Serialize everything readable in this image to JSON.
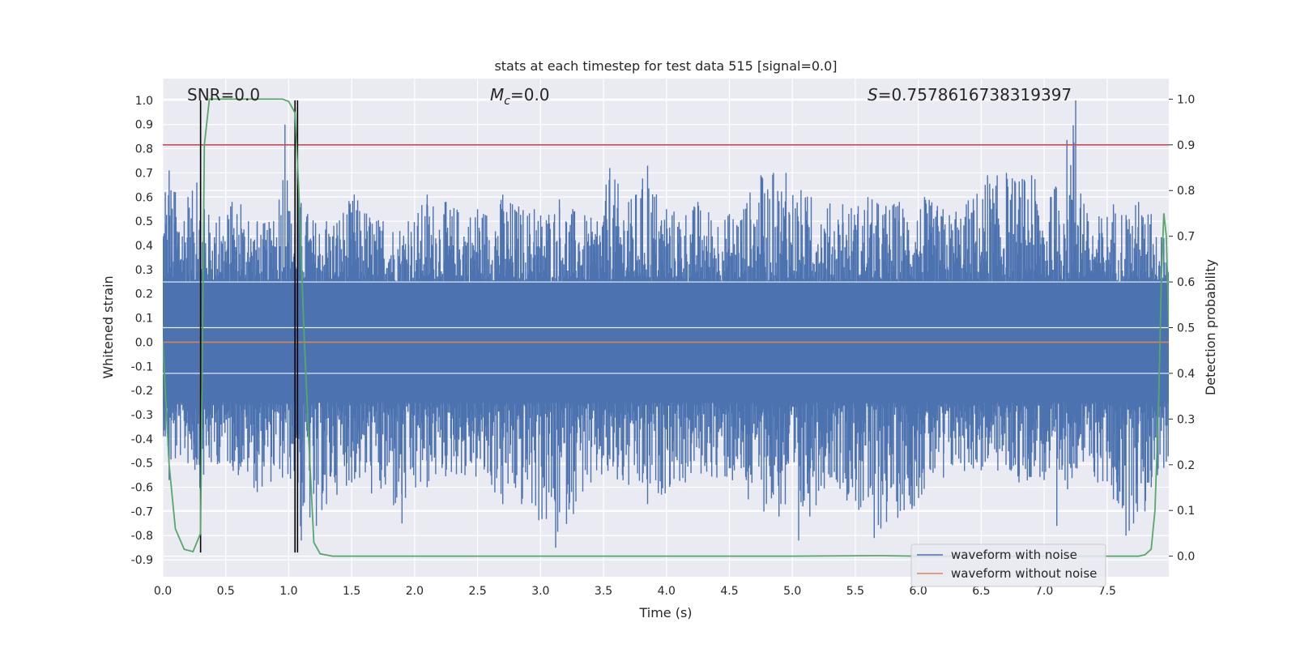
{
  "chart_data": {
    "type": "line",
    "title": "stats at each timestep for test data 515 [signal=0.0]",
    "xlabel": "Time (s)",
    "ylabel_left": "Whitened strain",
    "ylabel_right": "Detection probability",
    "xlim": [
      0.0,
      7.99
    ],
    "ylim_left": [
      -0.97,
      1.09
    ],
    "ylim_right": [
      -0.045,
      1.045
    ],
    "x_ticks": [
      "0.0",
      "0.5",
      "1.0",
      "1.5",
      "2.0",
      "2.5",
      "3.0",
      "3.5",
      "4.0",
      "4.5",
      "5.0",
      "5.5",
      "6.0",
      "6.5",
      "7.0",
      "7.5"
    ],
    "y_ticks_left": [
      "1.0",
      "0.9",
      "0.8",
      "0.7",
      "0.6",
      "0.5",
      "0.4",
      "0.3",
      "0.2",
      "0.1",
      "0.0",
      "-0.1",
      "-0.2",
      "-0.3",
      "-0.4",
      "-0.5",
      "-0.6",
      "-0.7",
      "-0.8",
      "-0.9"
    ],
    "y_ticks_right": [
      "1.0",
      "0.9",
      "0.8",
      "0.7",
      "0.6",
      "0.5",
      "0.4",
      "0.3",
      "0.2",
      "0.1",
      "0.0"
    ],
    "grid": true,
    "legend_position": "lower-right",
    "annotations": {
      "snr": "SNR=0.0",
      "mc_symbol": "M",
      "mc_sub": "c",
      "mc_value": "=0.0",
      "s_symbol": "S",
      "s_value": "=0.7578616738319397"
    },
    "series": [
      {
        "name": "waveform with noise",
        "color": "#4c72b0",
        "axis": "left",
        "band_abs": 0.25,
        "upper_peaks": [
          [
            0.02,
            0.62
          ],
          [
            0.05,
            0.71
          ],
          [
            0.1,
            0.62
          ],
          [
            0.2,
            0.6
          ],
          [
            0.27,
            0.66
          ],
          [
            0.33,
            0.55
          ],
          [
            0.45,
            0.52
          ],
          [
            0.55,
            0.58
          ],
          [
            0.62,
            0.57
          ],
          [
            0.68,
            0.5
          ],
          [
            0.75,
            0.5
          ],
          [
            0.88,
            0.5
          ],
          [
            0.97,
            0.9
          ],
          [
            1.02,
            0.49
          ],
          [
            1.08,
            0.62
          ],
          [
            1.15,
            0.53
          ],
          [
            1.3,
            0.5
          ],
          [
            1.52,
            0.61
          ],
          [
            1.75,
            0.5
          ],
          [
            1.95,
            0.5
          ],
          [
            2.1,
            0.61
          ],
          [
            2.25,
            0.58
          ],
          [
            2.5,
            0.55
          ],
          [
            2.7,
            0.61
          ],
          [
            2.95,
            0.55
          ],
          [
            3.15,
            0.59
          ],
          [
            3.45,
            0.5
          ],
          [
            3.55,
            0.72
          ],
          [
            3.7,
            0.58
          ],
          [
            3.85,
            0.73
          ],
          [
            4.0,
            0.55
          ],
          [
            4.25,
            0.58
          ],
          [
            4.5,
            0.53
          ],
          [
            4.75,
            0.69
          ],
          [
            4.85,
            0.7
          ],
          [
            4.95,
            0.7
          ],
          [
            5.15,
            0.6
          ],
          [
            5.4,
            0.57
          ],
          [
            5.6,
            0.6
          ],
          [
            5.85,
            0.58
          ],
          [
            6.05,
            0.6
          ],
          [
            6.3,
            0.54
          ],
          [
            6.55,
            0.69
          ],
          [
            6.7,
            0.7
          ],
          [
            6.9,
            0.69
          ],
          [
            7.05,
            0.6
          ],
          [
            7.25,
            1.0
          ],
          [
            7.35,
            0.5
          ],
          [
            7.55,
            0.57
          ],
          [
            7.75,
            0.58
          ],
          [
            7.85,
            0.53
          ],
          [
            7.95,
            0.43
          ]
        ],
        "lower_peaks": [
          [
            0.02,
            -0.39
          ],
          [
            0.05,
            -0.57
          ],
          [
            0.1,
            -0.48
          ],
          [
            0.2,
            -0.5
          ],
          [
            0.3,
            -0.61
          ],
          [
            0.45,
            -0.5
          ],
          [
            0.6,
            -0.55
          ],
          [
            0.75,
            -0.62
          ],
          [
            0.95,
            -0.56
          ],
          [
            1.05,
            -0.6
          ],
          [
            1.1,
            -0.82
          ],
          [
            1.22,
            -0.76
          ],
          [
            1.3,
            -0.67
          ],
          [
            1.5,
            -0.58
          ],
          [
            1.9,
            -0.75
          ],
          [
            2.1,
            -0.6
          ],
          [
            2.4,
            -0.55
          ],
          [
            2.7,
            -0.67
          ],
          [
            2.85,
            -0.67
          ],
          [
            3.12,
            -0.85
          ],
          [
            3.4,
            -0.58
          ],
          [
            3.85,
            -0.67
          ],
          [
            4.15,
            -0.58
          ],
          [
            4.4,
            -0.56
          ],
          [
            4.65,
            -0.65
          ],
          [
            5.05,
            -0.82
          ],
          [
            5.3,
            -0.56
          ],
          [
            5.65,
            -0.81
          ],
          [
            5.95,
            -0.69
          ],
          [
            6.2,
            -0.56
          ],
          [
            6.5,
            -0.53
          ],
          [
            6.8,
            -0.58
          ],
          [
            7.0,
            -0.57
          ],
          [
            7.1,
            -0.76
          ],
          [
            7.25,
            -0.52
          ],
          [
            7.55,
            -0.65
          ],
          [
            7.65,
            -0.8
          ],
          [
            7.8,
            -0.7
          ],
          [
            7.9,
            -0.55
          ]
        ]
      },
      {
        "name": "waveform without noise",
        "color": "#dd8452",
        "axis": "left",
        "x": [
          0.0,
          7.99
        ],
        "y": [
          0.0,
          0.0
        ]
      },
      {
        "name": "detection probability",
        "color": "#55a868",
        "axis": "right",
        "x": [
          0.0,
          0.05,
          0.1,
          0.17,
          0.24,
          0.3,
          0.33,
          0.37,
          0.45,
          0.6,
          0.8,
          0.95,
          1.0,
          1.05,
          1.08,
          1.12,
          1.16,
          1.2,
          1.25,
          1.35,
          1.5,
          2.0,
          3.0,
          4.0,
          5.0,
          5.7,
          6.0,
          7.0,
          7.5,
          7.65,
          7.75,
          7.8,
          7.85,
          7.88,
          7.91,
          7.93,
          7.95,
          7.97,
          7.99
        ],
        "y": [
          0.47,
          0.2,
          0.06,
          0.015,
          0.01,
          0.05,
          0.9,
          1.0,
          1.0,
          1.0,
          1.0,
          1.0,
          0.995,
          0.97,
          0.8,
          0.5,
          0.25,
          0.03,
          0.005,
          0.0,
          0.0,
          0.0,
          0.0,
          0.0,
          0.0,
          0.001,
          0.0,
          0.0,
          0.0,
          0.0,
          0.0,
          0.003,
          0.015,
          0.1,
          0.35,
          0.6,
          0.75,
          0.7,
          0.5
        ]
      }
    ],
    "threshold_line": {
      "color": "#c44e52",
      "axis": "right",
      "value": 0.9
    },
    "event_markers": {
      "color": "#000000",
      "x": [
        0.3,
        1.05,
        1.07
      ],
      "ymin": -0.87,
      "ymax": 1.0
    }
  }
}
